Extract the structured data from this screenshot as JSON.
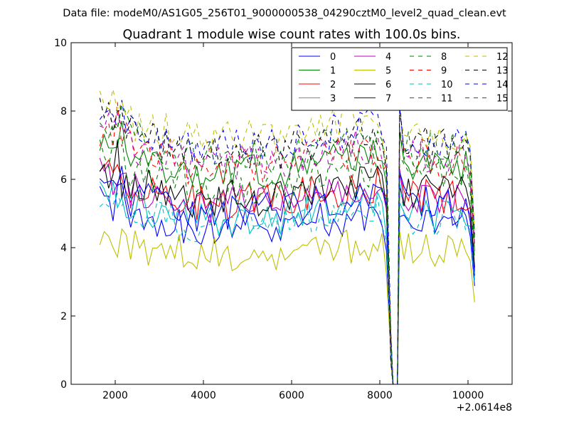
{
  "page": {
    "suptitle": "Data file: modeM0/AS1G05_256T01_9000000538_04290cztM0_level2_quad_clean.evt"
  },
  "chart_data": {
    "type": "line",
    "title": "Quadrant 1 module wise count rates with 100.0s bins.",
    "xlabel": "",
    "ylabel": "",
    "xlim": [
      1000,
      11000
    ],
    "ylim": [
      0,
      10
    ],
    "x_offset_label": "+2.0614e8",
    "x_ticks": [
      2000,
      4000,
      6000,
      8000,
      10000
    ],
    "y_ticks": [
      0,
      2,
      4,
      6,
      8,
      10
    ],
    "x_tick_labels": [
      "2000",
      "4000",
      "6000",
      "8000",
      "10000"
    ],
    "y_tick_labels": [
      "0",
      "2",
      "4",
      "6",
      "8",
      "10"
    ],
    "grid": false,
    "legend_position": "top-right",
    "legend_columns": 4,
    "segments": [
      [
        1650,
        8050
      ],
      [
        8450,
        10150
      ]
    ],
    "bin_width": 100,
    "gap_drop": [
      8300,
      8400
    ],
    "series": [
      {
        "name": "0",
        "color": "#0000ff",
        "style": "solid",
        "mean": 4.8
      },
      {
        "name": "1",
        "color": "#008000",
        "style": "solid",
        "mean": 6.5
      },
      {
        "name": "2",
        "color": "#ff0000",
        "style": "solid",
        "mean": 5.6
      },
      {
        "name": "3",
        "color": "#00bfbf",
        "style": "solid",
        "mean": 5.1
      },
      {
        "name": "4",
        "color": "#bf00bf",
        "style": "solid",
        "mean": 5.5
      },
      {
        "name": "5",
        "color": "#bfbf00",
        "style": "solid",
        "mean": 4.0
      },
      {
        "name": "6",
        "color": "#000000",
        "style": "solid",
        "mean": 5.7
      },
      {
        "name": "7",
        "color": "#0000ff",
        "style": "solid",
        "mean": 5.3
      },
      {
        "name": "8",
        "color": "#008000",
        "style": "dashed",
        "mean": 6.1
      },
      {
        "name": "9",
        "color": "#ff0000",
        "style": "dashed",
        "mean": 6.7
      },
      {
        "name": "10",
        "color": "#00bfbf",
        "style": "dashed",
        "mean": 4.9
      },
      {
        "name": "11",
        "color": "#bf00bf",
        "style": "dashed",
        "mean": 6.8
      },
      {
        "name": "12",
        "color": "#bfbf00",
        "style": "dashed",
        "mean": 7.5
      },
      {
        "name": "13",
        "color": "#000000",
        "style": "dashed",
        "mean": 7.1
      },
      {
        "name": "14",
        "color": "#0000ff",
        "style": "dashed",
        "mean": 7.3
      },
      {
        "name": "15",
        "color": "#008000",
        "style": "dashed",
        "mean": 7.0
      }
    ]
  }
}
